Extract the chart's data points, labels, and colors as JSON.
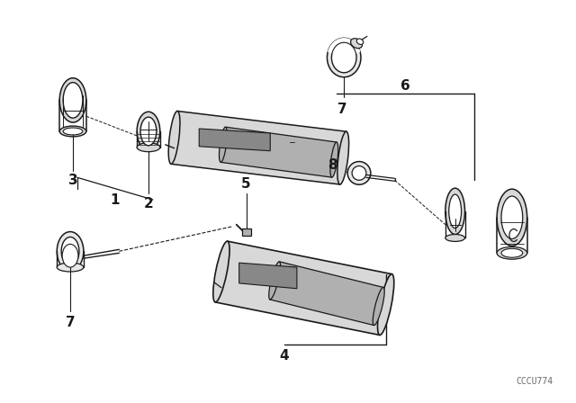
{
  "background_color": "#ffffff",
  "line_color": "#1a1a1a",
  "figsize": [
    6.4,
    4.48
  ],
  "dpi": 100,
  "watermark": "CCCU774",
  "label_fontsize": 10,
  "label_bold_fontsize": 11
}
